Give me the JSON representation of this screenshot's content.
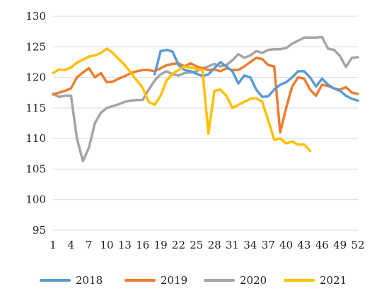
{
  "chart_data": {
    "type": "line",
    "title": "",
    "xlabel": "",
    "ylabel": "",
    "xlim": [
      1,
      52
    ],
    "ylim": [
      95,
      130
    ],
    "x_ticks": [
      1,
      4,
      7,
      10,
      13,
      16,
      19,
      22,
      25,
      28,
      31,
      34,
      37,
      40,
      43,
      46,
      49,
      52
    ],
    "y_ticks": [
      95,
      100,
      105,
      110,
      115,
      120,
      125,
      130
    ],
    "grid": "horizontal",
    "legend_position": "bottom",
    "series": [
      {
        "name": "2018",
        "color": "#5B9BD5",
        "x": [
          18,
          19,
          20,
          21,
          22,
          23,
          24,
          25,
          26,
          27,
          28,
          29,
          30,
          31,
          32,
          33,
          34,
          35,
          36,
          37,
          38,
          39,
          40,
          41,
          42,
          43,
          44,
          45,
          46,
          47,
          48,
          49,
          50,
          51,
          52
        ],
        "values": [
          120.5,
          124.3,
          124.5,
          124.2,
          122.0,
          121.2,
          121.0,
          120.6,
          120.2,
          120.5,
          121.5,
          122.5,
          121.8,
          121.0,
          119.0,
          120.3,
          120.0,
          118.0,
          116.8,
          116.9,
          118.0,
          118.8,
          119.2,
          120.0,
          121.0,
          121.0,
          120.0,
          118.5,
          119.8,
          118.8,
          118.2,
          117.8,
          117.0,
          116.5,
          116.2
        ]
      },
      {
        "name": "2019",
        "color": "#ED7D31",
        "x": [
          1,
          2,
          3,
          4,
          5,
          6,
          7,
          8,
          9,
          10,
          11,
          12,
          13,
          14,
          15,
          16,
          17,
          18,
          19,
          20,
          21,
          22,
          23,
          24,
          25,
          26,
          27,
          28,
          29,
          30,
          31,
          32,
          33,
          34,
          35,
          36,
          37,
          38,
          39,
          40,
          41,
          42,
          43,
          44,
          45,
          46,
          47,
          48,
          49,
          50,
          51,
          52
        ],
        "values": [
          117.2,
          117.5,
          117.8,
          118.2,
          120.0,
          120.8,
          121.5,
          120.0,
          120.7,
          119.2,
          119.3,
          119.8,
          120.2,
          120.7,
          121.0,
          121.2,
          121.2,
          121.0,
          121.5,
          122.0,
          122.2,
          122.3,
          121.8,
          122.3,
          121.8,
          121.5,
          121.2,
          121.3,
          121.0,
          121.5,
          121.2,
          121.2,
          121.8,
          122.5,
          123.2,
          123.0,
          122.0,
          121.8,
          111.0,
          115.0,
          118.5,
          120.0,
          119.8,
          118.0,
          117.0,
          118.8,
          118.6,
          118.2,
          118.0,
          118.4,
          117.5,
          117.3
        ]
      },
      {
        "name": "2020",
        "color": "#A5A5A5",
        "x": [
          1,
          2,
          3,
          4,
          5,
          6,
          7,
          8,
          9,
          10,
          11,
          12,
          13,
          14,
          15,
          16,
          17,
          18,
          19,
          20,
          21,
          22,
          23,
          24,
          25,
          26,
          27,
          28,
          29,
          30,
          31,
          32,
          33,
          34,
          35,
          36,
          37,
          38,
          39,
          40,
          41,
          42,
          43,
          44,
          45,
          46,
          47,
          48,
          49,
          50,
          51,
          52
        ],
        "values": [
          117.3,
          116.8,
          117.0,
          117.0,
          110.0,
          106.3,
          108.5,
          112.5,
          114.2,
          115.0,
          115.3,
          115.6,
          116.0,
          116.2,
          116.3,
          116.3,
          118.0,
          119.5,
          120.5,
          121.0,
          120.5,
          120.3,
          120.7,
          120.8,
          121.0,
          121.5,
          121.8,
          122.2,
          121.8,
          122.0,
          122.8,
          123.8,
          123.2,
          123.6,
          124.3,
          124.0,
          124.5,
          124.6,
          124.6,
          124.8,
          125.5,
          126.0,
          126.5,
          126.5,
          126.5,
          126.6,
          124.7,
          124.5,
          123.5,
          121.7,
          123.2,
          123.3
        ]
      },
      {
        "name": "2021",
        "color": "#FFC000",
        "x": [
          1,
          2,
          3,
          4,
          5,
          6,
          7,
          8,
          9,
          10,
          11,
          12,
          13,
          14,
          15,
          16,
          17,
          18,
          19,
          20,
          21,
          22,
          23,
          24,
          25,
          26,
          27,
          28,
          29,
          30,
          31,
          32,
          33,
          34,
          35,
          36,
          37,
          38,
          39,
          40,
          41,
          42,
          43,
          44
        ],
        "values": [
          120.7,
          121.3,
          121.2,
          121.6,
          122.4,
          122.9,
          123.4,
          123.6,
          124.0,
          124.7,
          124.0,
          123.0,
          122.0,
          120.8,
          119.5,
          118.3,
          116.0,
          115.5,
          117.0,
          119.5,
          120.6,
          121.2,
          121.8,
          121.6,
          121.4,
          121.2,
          110.8,
          117.8,
          118.0,
          117.0,
          115.0,
          115.5,
          116.0,
          116.5,
          116.6,
          116.0,
          113.0,
          109.8,
          110.0,
          109.2,
          109.5,
          109.0,
          109.0,
          108.0
        ]
      }
    ]
  }
}
